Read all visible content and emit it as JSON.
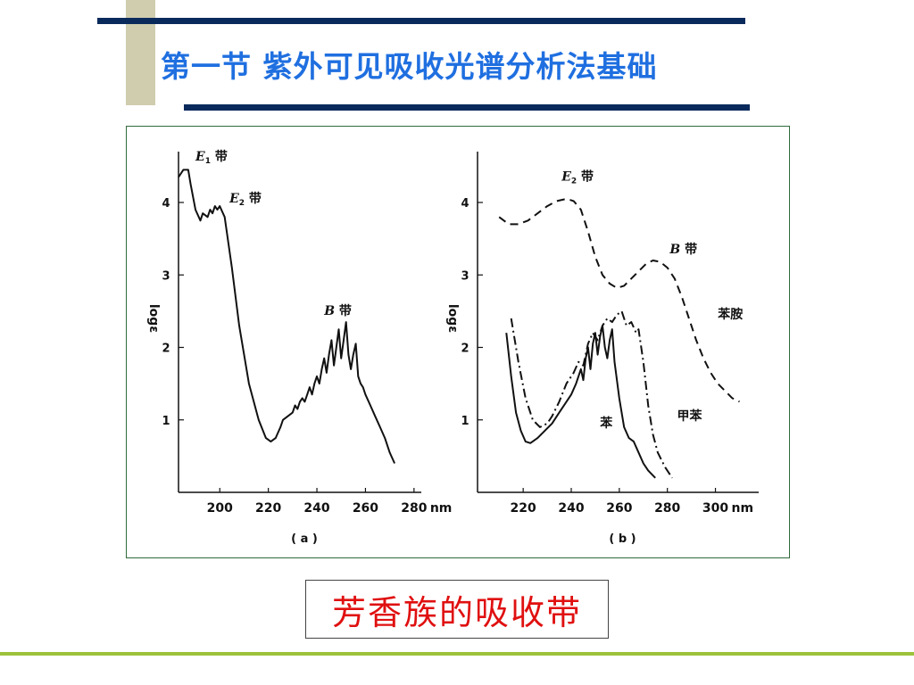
{
  "slide": {
    "title": "第一节  紫外可见吸收光谱分析法基础",
    "caption": "芳香族的吸收带"
  },
  "colors": {
    "title": "#1f6fe0",
    "caption": "#e01010",
    "rule": "#0a2a5c",
    "accent_block": "#cfcdae",
    "footer": "#9cc23a"
  },
  "chart_data": [
    {
      "type": "line",
      "panel_label": "( a )",
      "ylabel": "logε",
      "x_unit": "nm",
      "xticks": [
        200,
        220,
        240,
        260,
        280
      ],
      "yticks": [
        1,
        2,
        3,
        4
      ],
      "xlim": [
        183,
        283
      ],
      "ylim": [
        0,
        4.8
      ],
      "annotations": [
        {
          "main": "E",
          "sub": "1",
          "suffix": " 带",
          "x": 190,
          "y": 4.58
        },
        {
          "main": "E",
          "sub": "2",
          "suffix": " 带",
          "x": 204,
          "y": 4.0
        },
        {
          "main": "B",
          "sub": "",
          "suffix": " 带",
          "x": 243,
          "y": 2.45
        }
      ],
      "series": [
        {
          "style": "solid",
          "x": [
            183,
            185,
            187,
            188,
            190,
            192,
            193,
            195,
            196,
            197,
            198,
            199,
            200,
            202,
            205,
            208,
            212,
            216,
            219,
            221,
            223,
            225,
            226,
            228,
            230,
            231,
            232,
            233,
            234,
            235,
            236,
            237,
            238,
            239,
            240,
            241,
            242,
            243,
            244,
            245,
            246,
            247,
            248,
            249,
            250,
            251,
            252,
            253,
            254,
            255,
            256,
            257,
            258,
            259,
            260,
            262,
            264,
            266,
            268,
            270,
            272
          ],
          "y": [
            4.35,
            4.45,
            4.45,
            4.25,
            3.9,
            3.75,
            3.85,
            3.8,
            3.9,
            3.85,
            3.95,
            3.9,
            3.95,
            3.8,
            3.1,
            2.3,
            1.5,
            1.0,
            0.75,
            0.7,
            0.75,
            0.9,
            1.0,
            1.05,
            1.1,
            1.2,
            1.15,
            1.25,
            1.3,
            1.25,
            1.35,
            1.45,
            1.35,
            1.5,
            1.6,
            1.5,
            1.7,
            1.85,
            1.65,
            1.9,
            2.1,
            1.75,
            2.0,
            2.25,
            1.85,
            2.1,
            2.35,
            1.9,
            1.7,
            1.9,
            2.05,
            1.6,
            1.5,
            1.45,
            1.35,
            1.2,
            1.05,
            0.9,
            0.75,
            0.55,
            0.4
          ]
        }
      ]
    },
    {
      "type": "line",
      "panel_label": "( b )",
      "ylabel": "logε",
      "x_unit": "nm",
      "xticks": [
        220,
        240,
        260,
        280,
        300
      ],
      "yticks": [
        1,
        2,
        3,
        4
      ],
      "xlim": [
        201,
        318
      ],
      "ylim": [
        0,
        4.8
      ],
      "annotations": [
        {
          "main": "E",
          "sub": "2",
          "suffix": " 带",
          "x": 236,
          "y": 4.3
        },
        {
          "main": "B",
          "sub": "",
          "suffix": " 带",
          "x": 281,
          "y": 3.3
        },
        {
          "main": "",
          "sub": "",
          "suffix": "苯胺",
          "x": 301,
          "y": 2.4
        },
        {
          "main": "",
          "sub": "",
          "suffix": "甲苯",
          "x": 284,
          "y": 1.0
        },
        {
          "main": "",
          "sub": "",
          "suffix": "苯",
          "x": 252,
          "y": 0.9
        }
      ],
      "series": [
        {
          "name": "苯胺",
          "style": "dashed",
          "x": [
            210,
            214,
            218,
            222,
            226,
            230,
            234,
            238,
            241,
            244,
            247,
            250,
            253,
            256,
            259,
            262,
            265,
            268,
            271,
            274,
            277,
            280,
            283,
            286,
            289,
            292,
            295,
            298,
            301,
            304,
            307,
            310
          ],
          "y": [
            3.8,
            3.7,
            3.7,
            3.75,
            3.85,
            3.95,
            4.02,
            4.05,
            4.02,
            3.9,
            3.6,
            3.25,
            3.0,
            2.88,
            2.82,
            2.85,
            2.95,
            3.05,
            3.15,
            3.2,
            3.18,
            3.1,
            2.95,
            2.7,
            2.4,
            2.1,
            1.85,
            1.65,
            1.5,
            1.4,
            1.3,
            1.25
          ]
        },
        {
          "name": "甲苯",
          "style": "dashdot",
          "x": [
            215,
            218,
            221,
            224,
            227,
            230,
            232,
            235,
            238,
            241,
            243,
            245,
            247,
            249,
            251,
            253,
            255,
            257,
            259,
            261,
            263,
            265,
            267,
            268,
            270,
            272,
            274,
            276,
            279,
            282
          ],
          "y": [
            2.4,
            1.8,
            1.3,
            1.0,
            0.9,
            0.95,
            1.05,
            1.25,
            1.5,
            1.65,
            1.8,
            1.75,
            2.05,
            2.2,
            2.1,
            2.3,
            2.4,
            2.35,
            2.45,
            2.5,
            2.3,
            2.35,
            2.2,
            2.25,
            1.8,
            1.2,
            0.8,
            0.55,
            0.35,
            0.2
          ]
        },
        {
          "name": "苯",
          "style": "solid",
          "x": [
            213,
            215,
            217,
            219,
            221,
            223,
            226,
            229,
            232,
            235,
            238,
            240,
            242,
            244,
            245,
            246,
            247,
            248,
            249,
            250,
            251,
            252,
            253,
            254,
            255,
            256,
            257,
            258,
            260,
            262,
            264,
            266,
            268,
            270,
            272,
            275
          ],
          "y": [
            2.2,
            1.6,
            1.1,
            0.85,
            0.7,
            0.68,
            0.75,
            0.85,
            0.95,
            1.1,
            1.25,
            1.35,
            1.5,
            1.7,
            1.55,
            1.85,
            2.0,
            1.7,
            2.05,
            2.2,
            1.9,
            2.15,
            2.3,
            2.0,
            1.85,
            2.1,
            2.25,
            1.8,
            1.3,
            0.9,
            0.75,
            0.7,
            0.55,
            0.4,
            0.3,
            0.2
          ]
        }
      ]
    }
  ]
}
